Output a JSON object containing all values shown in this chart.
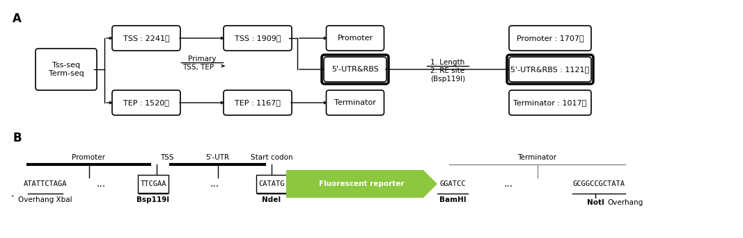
{
  "bg_color": "#ffffff",
  "panel_A_label": "A",
  "panel_B_label": "B",
  "box_tss_seq": "Tss-seq\nTerm-seq",
  "box_tss_2241": "TSS : 2241개",
  "box_tep_1520": "TEP : 1520개",
  "box_tss_1909": "TSS : 1909개",
  "box_tep_1167": "TEP : 1167개",
  "box_promoter": "Promoter",
  "box_utr_rbs": "5'-UTR&RBS",
  "box_terminator": "Terminator",
  "box_promoter_1707": "Promoter : 1707개",
  "box_utr_rbs_1121": "5'-UTR&RBS : 1121개",
  "box_terminator_1017": "Terminator : 1017개",
  "text_primary_line1": "Primary",
  "text_primary_line2": "TSS, TEP",
  "text_filter": "1. Length\n2. RE site\n(Bsp119I)",
  "b_seq1": "ATATTCTAGA",
  "b_dots1": "...",
  "b_ttcgaa": "TTCGAA",
  "b_dots2": "...",
  "b_catatg": "CATATG",
  "b_reporter": "Fluorescent reporter",
  "b_ggatcc": "GGATCC",
  "b_dots3": "...",
  "b_gcgg": "GCGGCCGCTATA",
  "b_label_promoter": "Promoter",
  "b_label_tss": "TSS",
  "b_label_utr": "5'-UTR",
  "b_label_start": "Start codon",
  "b_label_terminator": "Terminator",
  "b_label_overhang_xbal": "Overhang XbaI",
  "b_label_bsp": "Bsp119I",
  "b_label_ndei": "NdeI",
  "b_label_bamhi": "BamHI",
  "b_label_noti": "NotI",
  "b_label_overhang2": "Overhang",
  "reporter_color": "#8dc63f",
  "reporter_text_color": "#ffffff"
}
